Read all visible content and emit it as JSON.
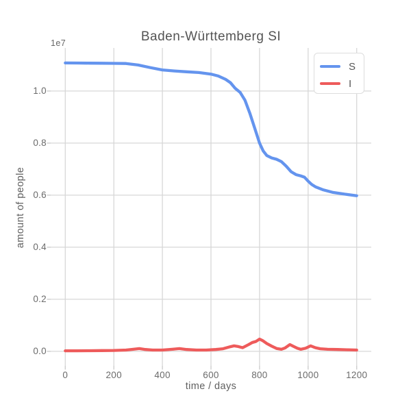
{
  "chart_data": {
    "type": "line",
    "title": "Baden-Württemberg SI",
    "xlabel": "time / days",
    "ylabel": "amount of people",
    "y_offset_label": "1e7",
    "grid": true,
    "legend_position": "upper right",
    "xlim": [
      -60,
      1260
    ],
    "ylim": [
      -555000,
      11655000
    ],
    "xticks": [
      0,
      200,
      400,
      600,
      800,
      1000,
      1200
    ],
    "xtick_labels": [
      "0",
      "200",
      "400",
      "600",
      "800",
      "1000",
      "1200"
    ],
    "yticks": [
      0,
      2000000,
      4000000,
      6000000,
      8000000,
      10000000
    ],
    "ytick_labels": [
      "0.0",
      "0.2",
      "0.4",
      "0.6",
      "0.8",
      "1.0"
    ],
    "colors": {
      "s_line": "#6494ee",
      "i_line": "#ee5b5b",
      "grid": "#d7d7d7",
      "tick_mark": "#c9c9c9",
      "tick_text": "#6b6b6b",
      "title_text": "#545454",
      "label_text": "#606060",
      "legend_border": "#dddddd"
    },
    "series": [
      {
        "name": "S",
        "color": "#6494ee",
        "x": [
          0,
          50,
          100,
          150,
          200,
          250,
          300,
          350,
          400,
          450,
          500,
          550,
          600,
          630,
          660,
          680,
          700,
          720,
          740,
          760,
          780,
          800,
          815,
          830,
          850,
          870,
          890,
          910,
          930,
          950,
          970,
          985,
          1000,
          1015,
          1030,
          1060,
          1100,
          1150,
          1200
        ],
        "y": [
          11080000,
          11076000,
          11072000,
          11068000,
          11064000,
          11058000,
          11000000,
          10900000,
          10810000,
          10770000,
          10740000,
          10710000,
          10650000,
          10580000,
          10450000,
          10320000,
          10100000,
          9950000,
          9650000,
          9150000,
          8580000,
          8000000,
          7700000,
          7520000,
          7430000,
          7380000,
          7290000,
          7110000,
          6900000,
          6790000,
          6740000,
          6690000,
          6540000,
          6410000,
          6320000,
          6210000,
          6110000,
          6040000,
          5980000
        ]
      },
      {
        "name": "I",
        "color": "#ee5b5b",
        "x": [
          0,
          50,
          100,
          150,
          200,
          250,
          280,
          305,
          330,
          360,
          400,
          440,
          470,
          500,
          540,
          580,
          620,
          650,
          680,
          695,
          710,
          730,
          755,
          770,
          785,
          800,
          815,
          830,
          850,
          870,
          890,
          905,
          925,
          940,
          955,
          970,
          990,
          1010,
          1030,
          1050,
          1080,
          1120,
          1160,
          1200
        ],
        "y": [
          20000,
          20000,
          25000,
          30000,
          35000,
          50000,
          80000,
          105000,
          70000,
          50000,
          50000,
          80000,
          105000,
          70000,
          50000,
          50000,
          70000,
          100000,
          180000,
          210000,
          190000,
          140000,
          260000,
          340000,
          380000,
          470000,
          400000,
          300000,
          200000,
          110000,
          80000,
          130000,
          260000,
          190000,
          120000,
          80000,
          120000,
          210000,
          140000,
          100000,
          80000,
          70000,
          60000,
          50000
        ]
      }
    ]
  }
}
